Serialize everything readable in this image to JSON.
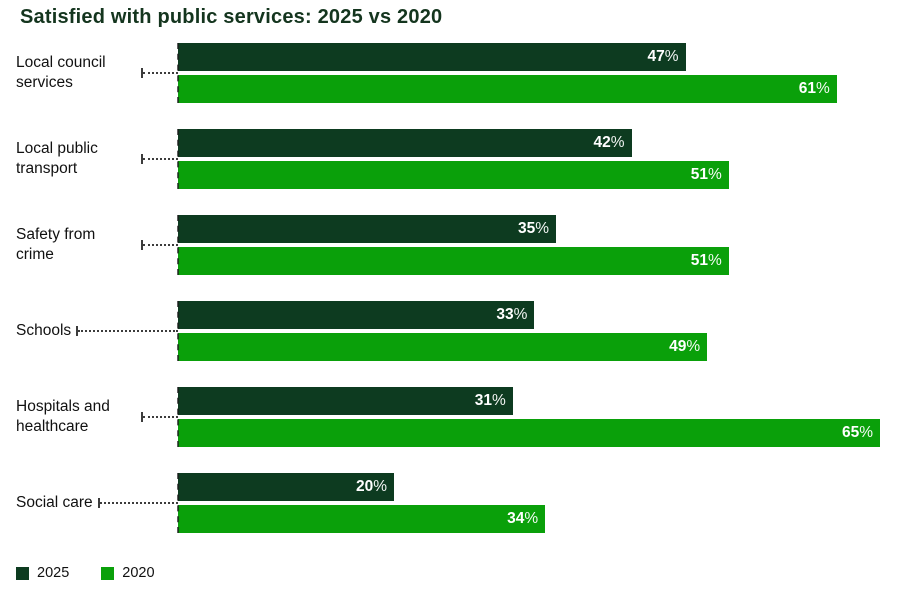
{
  "title": "Satisfied with public services: 2025 vs 2020",
  "colors": {
    "title_text": "#14351e",
    "series_2025": "#0d3b20",
    "series_2020": "#0aa00a",
    "category_text": "#111111",
    "leader_line": "#3c3c3c",
    "value_text": "#ffffff",
    "background": "#ffffff"
  },
  "chart_data": {
    "type": "bar",
    "orientation": "horizontal",
    "title": "Satisfied with public services: 2025 vs 2020",
    "categories": [
      "Local council services",
      "Local public transport",
      "Safety from crime",
      "Schools",
      "Hospitals and healthcare",
      "Social care"
    ],
    "series": [
      {
        "name": "2025",
        "color": "#0d3b20",
        "values": [
          47,
          42,
          35,
          33,
          31,
          20
        ]
      },
      {
        "name": "2020",
        "color": "#0aa00a",
        "values": [
          61,
          51,
          51,
          49,
          65,
          34
        ]
      }
    ],
    "value_suffix": "%",
    "xlim": [
      0,
      65
    ],
    "value_labels": "inside-end",
    "grid": false,
    "legend_position": "bottom-left"
  },
  "legend": [
    {
      "label": "2025"
    },
    {
      "label": "2020"
    }
  ]
}
